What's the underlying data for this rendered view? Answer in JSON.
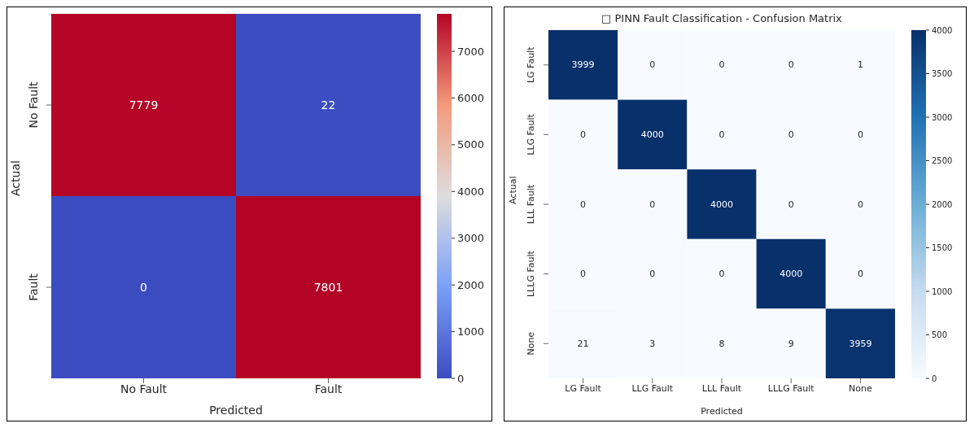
{
  "chart_data": [
    {
      "type": "heatmap",
      "xlabel": "Predicted",
      "ylabel": "Actual",
      "categories": [
        "No Fault",
        "Fault"
      ],
      "y_categories": [
        "No Fault",
        "Fault"
      ],
      "cells": [
        [
          7779,
          22
        ],
        [
          0,
          7801
        ]
      ],
      "clim": [
        0,
        7801
      ],
      "cticks": [
        0,
        1000,
        2000,
        3000,
        4000,
        5000,
        6000,
        7000
      ],
      "data_labels": true
    },
    {
      "type": "heatmap",
      "title": "□ PINN Fault Classification - Confusion Matrix",
      "xlabel": "Predicted",
      "ylabel": "Actual",
      "categories": [
        "LG Fault",
        "LLG Fault",
        "LLL Fault",
        "LLLG Fault",
        "None"
      ],
      "y_categories": [
        "LG Fault",
        "LLG Fault",
        "LLL Fault",
        "LLLG Fault",
        "None"
      ],
      "cells": [
        [
          3999,
          0,
          0,
          0,
          1
        ],
        [
          0,
          4000,
          0,
          0,
          0
        ],
        [
          0,
          0,
          4000,
          0,
          0
        ],
        [
          0,
          0,
          0,
          4000,
          0
        ],
        [
          21,
          3,
          8,
          9,
          3959
        ]
      ],
      "clim": [
        0,
        4000
      ],
      "cticks": [
        0,
        500,
        1000,
        1500,
        2000,
        2500,
        3000,
        3500,
        4000
      ],
      "data_labels": true
    }
  ]
}
